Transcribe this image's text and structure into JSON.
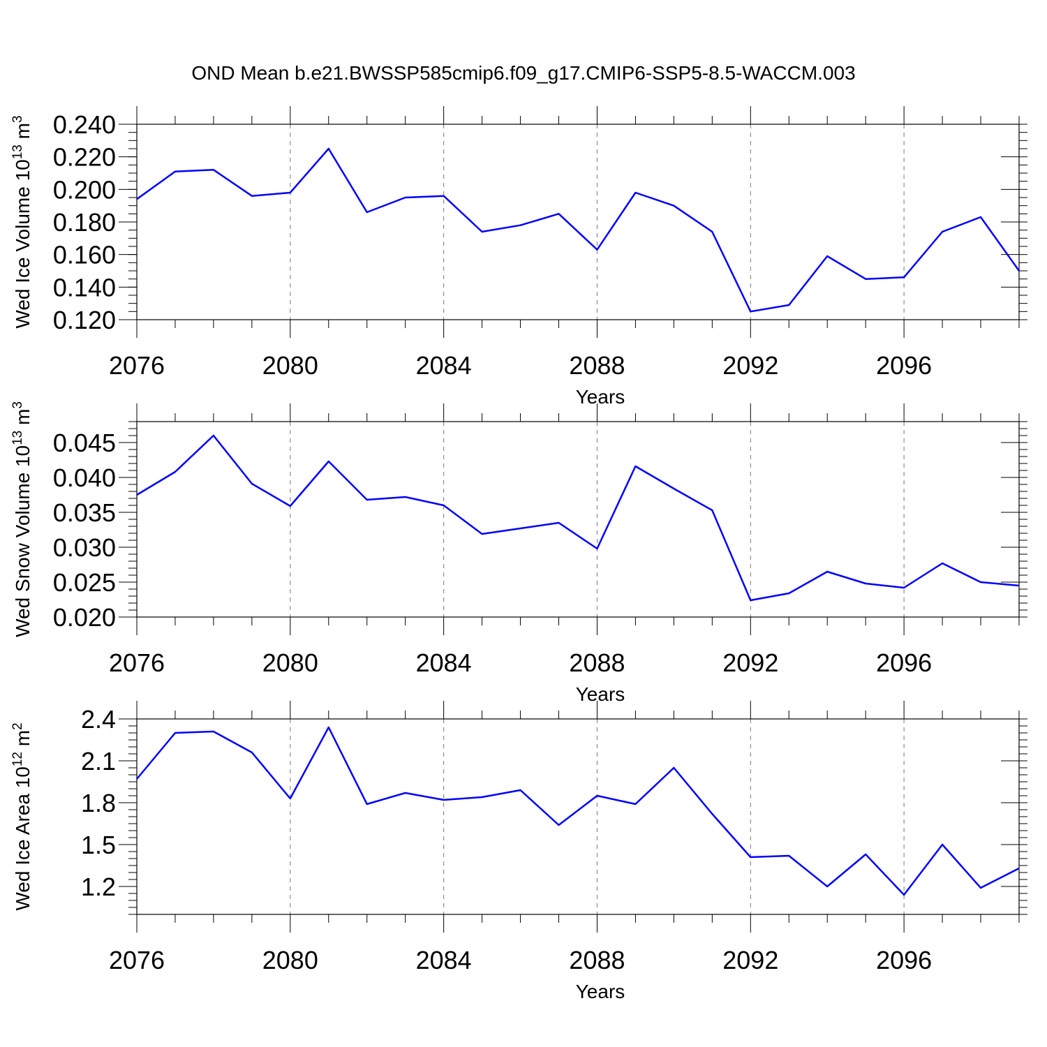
{
  "figure": {
    "title": "OND Mean b.e21.BWSSP585cmip6.f09_g17.CMIP6-SSP5-8.5-WACCM.003"
  },
  "colors": {
    "series": "#0000ff",
    "axis": "#000000",
    "grid": "#777777"
  },
  "chart_data": [
    {
      "type": "line",
      "title": "OND Mean b.e21.BWSSP585cmip6.f09_g17.CMIP6-SSP5-8.5-WACCM.003",
      "ylabel_base": "Wed Ice Volume 10",
      "ylabel_exp": "13",
      "ylabel_unit": " m",
      "ylabel_unit_exp": "3",
      "xlabel": "Years",
      "xlim": [
        2076,
        2099
      ],
      "ylim": [
        0.12,
        0.24
      ],
      "yticks": [
        0.12,
        0.14,
        0.16,
        0.18,
        0.2,
        0.22,
        0.24
      ],
      "ytick_labels": [
        "0.120",
        "0.140",
        "0.160",
        "0.180",
        "0.200",
        "0.220",
        "0.240"
      ],
      "yminor_step": 0.005,
      "xticks": [
        2076,
        2080,
        2084,
        2088,
        2092,
        2096
      ],
      "xtick_labels": [
        "2076",
        "2080",
        "2084",
        "2088",
        "2092",
        "2096"
      ],
      "grid": "vertical dashed at major x ticks",
      "x": [
        2076,
        2077,
        2078,
        2079,
        2080,
        2081,
        2082,
        2083,
        2084,
        2085,
        2086,
        2087,
        2088,
        2089,
        2090,
        2091,
        2092,
        2093,
        2094,
        2095,
        2096,
        2097,
        2098,
        2099
      ],
      "y": [
        0.194,
        0.211,
        0.212,
        0.196,
        0.198,
        0.225,
        0.186,
        0.195,
        0.196,
        0.174,
        0.178,
        0.185,
        0.163,
        0.198,
        0.19,
        0.174,
        0.125,
        0.129,
        0.159,
        0.145,
        0.146,
        0.174,
        0.183,
        0.15
      ]
    },
    {
      "type": "line",
      "ylabel_base": "Wed Snow Volume 10",
      "ylabel_exp": "13",
      "ylabel_unit": " m",
      "ylabel_unit_exp": "3",
      "xlabel": "Years",
      "xlim": [
        2076,
        2099
      ],
      "ylim": [
        0.02,
        0.048
      ],
      "yticks": [
        0.02,
        0.025,
        0.03,
        0.035,
        0.04,
        0.045
      ],
      "ytick_labels": [
        "0.020",
        "0.025",
        "0.030",
        "0.035",
        "0.040",
        "0.045"
      ],
      "yminor_step": 0.001,
      "xticks": [
        2076,
        2080,
        2084,
        2088,
        2092,
        2096
      ],
      "xtick_labels": [
        "2076",
        "2080",
        "2084",
        "2088",
        "2092",
        "2096"
      ],
      "grid": "vertical dashed at major x ticks",
      "x": [
        2076,
        2077,
        2078,
        2079,
        2080,
        2081,
        2082,
        2083,
        2084,
        2085,
        2086,
        2087,
        2088,
        2089,
        2090,
        2091,
        2092,
        2093,
        2094,
        2095,
        2096,
        2097,
        2098,
        2099
      ],
      "y": [
        0.0375,
        0.0408,
        0.046,
        0.0391,
        0.0359,
        0.0423,
        0.0368,
        0.0372,
        0.036,
        0.0319,
        0.0327,
        0.0335,
        0.0298,
        0.0416,
        0.0384,
        0.0353,
        0.0224,
        0.0234,
        0.0265,
        0.0248,
        0.0242,
        0.0277,
        0.025,
        0.0245
      ]
    },
    {
      "type": "line",
      "ylabel_base": "Wed Ice Area 10",
      "ylabel_exp": "12",
      "ylabel_unit": " m",
      "ylabel_unit_exp": "2",
      "xlabel": "Years",
      "xlim": [
        2076,
        2099
      ],
      "ylim": [
        1.0,
        2.4
      ],
      "yticks": [
        1.2,
        1.5,
        1.8,
        2.1,
        2.4
      ],
      "ytick_labels": [
        "1.2",
        "1.5",
        "1.8",
        "2.1",
        "2.4"
      ],
      "yminor_step": 0.05,
      "xticks": [
        2076,
        2080,
        2084,
        2088,
        2092,
        2096
      ],
      "xtick_labels": [
        "2076",
        "2080",
        "2084",
        "2088",
        "2092",
        "2096"
      ],
      "grid": "vertical dashed at major x ticks",
      "x": [
        2076,
        2077,
        2078,
        2079,
        2080,
        2081,
        2082,
        2083,
        2084,
        2085,
        2086,
        2087,
        2088,
        2089,
        2090,
        2091,
        2092,
        2093,
        2094,
        2095,
        2096,
        2097,
        2098,
        2099
      ],
      "y": [
        1.97,
        2.3,
        2.31,
        2.16,
        1.83,
        2.34,
        1.79,
        1.87,
        1.82,
        1.84,
        1.89,
        1.64,
        1.85,
        1.79,
        2.05,
        1.72,
        1.41,
        1.42,
        1.2,
        1.43,
        1.14,
        1.5,
        1.19,
        1.33
      ]
    }
  ]
}
